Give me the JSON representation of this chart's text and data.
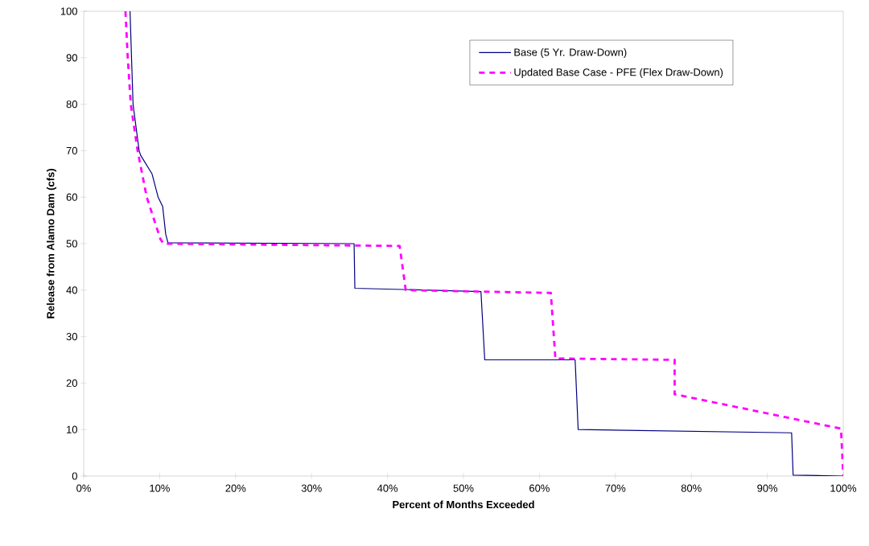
{
  "chart_data": {
    "type": "line",
    "xlabel": "Percent of Months Exceeded",
    "ylabel": "Release from Alamo Dam (cfs)",
    "xlim": [
      0,
      100
    ],
    "ylim": [
      0,
      100
    ],
    "xticks": [
      {
        "value": 0,
        "label": "0%"
      },
      {
        "value": 10,
        "label": "10%"
      },
      {
        "value": 20,
        "label": "20%"
      },
      {
        "value": 30,
        "label": "30%"
      },
      {
        "value": 40,
        "label": "40%"
      },
      {
        "value": 50,
        "label": "50%"
      },
      {
        "value": 60,
        "label": "60%"
      },
      {
        "value": 70,
        "label": "70%"
      },
      {
        "value": 80,
        "label": "80%"
      },
      {
        "value": 90,
        "label": "90%"
      },
      {
        "value": 100,
        "label": "100%"
      }
    ],
    "yticks": [
      0,
      10,
      20,
      30,
      40,
      50,
      60,
      70,
      80,
      90,
      100
    ],
    "grid": false,
    "legend": "top right",
    "marker": "none",
    "series": [
      {
        "name": "Base (5 Yr. Draw-Down)",
        "color": "#000080",
        "line_style": "solid",
        "x": [
          6.1,
          6.3,
          6.5,
          7.3,
          7.5,
          9.0,
          9.8,
          10.4,
          10.8,
          11.1,
          35.6,
          35.7,
          52.3,
          52.8,
          64.7,
          65.1,
          93.2,
          93.4,
          100
        ],
        "values": [
          100,
          90,
          80,
          70,
          69,
          65,
          60,
          58,
          52,
          50.2,
          50,
          40.4,
          39.7,
          25,
          25,
          10,
          9.3,
          0.2,
          0
        ]
      },
      {
        "name": "Updated Base Case - PFE (Flex Draw-Down)",
        "color": "#ff00ff",
        "line_style": "dashed",
        "x": [
          5.5,
          5.8,
          6.2,
          7.1,
          8.3,
          10.1,
          10.5,
          41.6,
          42.4,
          61.5,
          62.1,
          77.8,
          77.8,
          99.7,
          100
        ],
        "values": [
          100,
          90,
          80,
          70,
          60,
          51,
          50,
          49.5,
          40,
          39.4,
          25.3,
          25,
          17.6,
          10.2,
          0
        ]
      }
    ]
  }
}
